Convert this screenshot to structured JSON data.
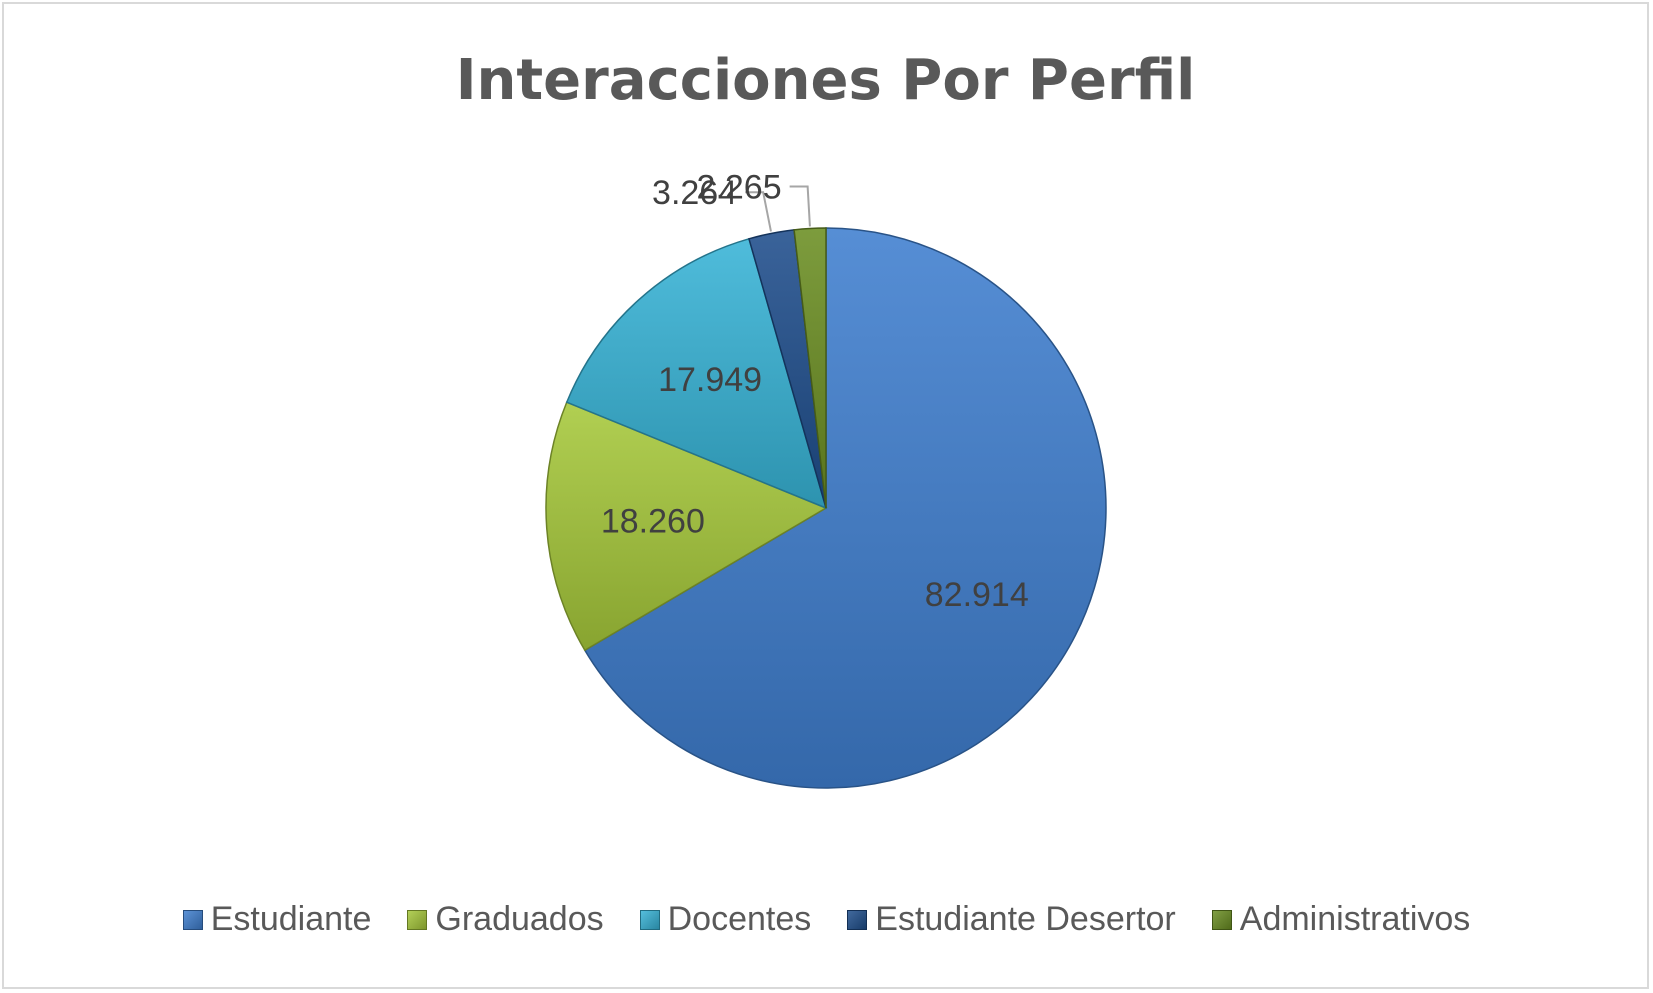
{
  "chart_data": {
    "type": "pie",
    "title": "Interacciones Por Perfil",
    "categories": [
      "Estudiante",
      "Graduados",
      "Docentes",
      "Estudiante Desertor",
      "Administrativos"
    ],
    "values": [
      82914,
      18260,
      17949,
      3264,
      2265
    ],
    "labels": [
      "82.914",
      "18.260",
      "17.949",
      "3.264",
      "2.265"
    ],
    "colors": [
      "#3f7fcf",
      "#a6c83a",
      "#37b3d6",
      "#1f4e8c",
      "#6b8e23"
    ],
    "legend_position": "bottom",
    "start_angle_deg": 0,
    "direction": "clockwise"
  }
}
